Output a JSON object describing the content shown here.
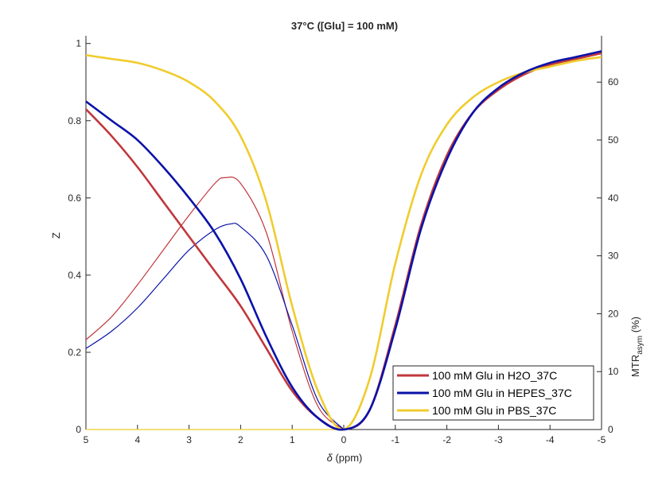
{
  "chart_data": {
    "type": "line",
    "title": "37°C ([Glu] = 100 mM)",
    "xlabel_symbol": "δ",
    "xlabel_unit": " (ppm)",
    "ylabel_left": "Z",
    "ylabel_right_main": "MTR",
    "ylabel_right_sub": "asym",
    "ylabel_right_unit": " (%)",
    "xlim": [
      5,
      -5
    ],
    "ylim_left": [
      0,
      1.02
    ],
    "ylim_right": [
      0,
      68
    ],
    "x_ticks": [
      5,
      4,
      3,
      2,
      1,
      0,
      -1,
      -2,
      -3,
      -4,
      -5
    ],
    "x_tick_labels": [
      "5",
      "4",
      "3",
      "2",
      "1",
      "0",
      "-1",
      "-2",
      "-3",
      "-4",
      "-5"
    ],
    "y_left_ticks": [
      0,
      0.2,
      0.4,
      0.6,
      0.8,
      1
    ],
    "y_left_tick_labels": [
      "0",
      "0.2",
      "0.4",
      "0.6",
      "0.8",
      "1"
    ],
    "y_right_ticks": [
      0,
      10,
      20,
      30,
      40,
      50,
      60
    ],
    "y_right_tick_labels": [
      "0",
      "10",
      "20",
      "30",
      "40",
      "50",
      "60"
    ],
    "grid": false,
    "legend_position": "bottom-right",
    "z_spectra": [
      {
        "name": "100 mM Glu in H2O_37C",
        "color": "#c0373c",
        "x": [
          5,
          4.5,
          4,
          3.5,
          3,
          2.5,
          2,
          1.5,
          1,
          0.5,
          0,
          -0.5,
          -1,
          -1.5,
          -2,
          -2.5,
          -3,
          -3.5,
          -4,
          -4.5,
          -5
        ],
        "y": [
          0.83,
          0.76,
          0.68,
          0.59,
          0.5,
          0.41,
          0.32,
          0.21,
          0.1,
          0.03,
          0.0,
          0.05,
          0.27,
          0.53,
          0.71,
          0.82,
          0.88,
          0.92,
          0.945,
          0.96,
          0.975
        ]
      },
      {
        "name": "100 mM Glu in HEPES_37C",
        "color": "#0a12a8",
        "x": [
          5,
          4.5,
          4,
          3.5,
          3,
          2.5,
          2,
          1.5,
          1,
          0.5,
          0,
          -0.5,
          -1,
          -1.5,
          -2,
          -2.5,
          -3,
          -3.5,
          -4,
          -4.5,
          -5
        ],
        "y": [
          0.85,
          0.8,
          0.75,
          0.68,
          0.6,
          0.51,
          0.39,
          0.24,
          0.11,
          0.03,
          0.0,
          0.05,
          0.26,
          0.52,
          0.7,
          0.82,
          0.885,
          0.925,
          0.95,
          0.965,
          0.98
        ]
      },
      {
        "name": "100 mM Glu in PBS_37C",
        "color": "#f0cc2e",
        "x": [
          5,
          4.5,
          4,
          3.5,
          3,
          2.5,
          2,
          1.5,
          1,
          0.5,
          0,
          -0.5,
          -1,
          -1.5,
          -2,
          -2.5,
          -3,
          -3.5,
          -4,
          -4.5,
          -5
        ],
        "y": [
          0.97,
          0.96,
          0.95,
          0.93,
          0.9,
          0.85,
          0.76,
          0.59,
          0.32,
          0.1,
          0.0,
          0.13,
          0.43,
          0.66,
          0.79,
          0.86,
          0.9,
          0.925,
          0.94,
          0.955,
          0.965
        ]
      }
    ],
    "mtr_asym": [
      {
        "name": "100 mM Glu in H2O_37C",
        "color": "#c0373c",
        "x": [
          5,
          4.5,
          4,
          3.5,
          3,
          2.5,
          2.3,
          2,
          1.5,
          1,
          0.5,
          0
        ],
        "y": [
          15.5,
          19.5,
          25,
          31,
          37,
          42.5,
          43.5,
          42.5,
          34,
          17,
          4,
          0
        ]
      },
      {
        "name": "100 mM Glu in HEPES_37C",
        "color": "#0a12a8",
        "x": [
          5,
          4.5,
          4,
          3.5,
          3,
          2.5,
          2.2,
          2,
          1.5,
          1,
          0.5,
          0
        ],
        "y": [
          14,
          17,
          21,
          26,
          31,
          34.5,
          35.5,
          35,
          30,
          18,
          5,
          0
        ]
      },
      {
        "name": "100 mM Glu in PBS_37C",
        "color": "#f0cc2e",
        "x": [
          5,
          4,
          3,
          2,
          1.5,
          1,
          0.5,
          0
        ],
        "y": [
          0,
          0,
          0,
          0,
          0,
          0,
          0,
          0
        ]
      }
    ],
    "legend": [
      {
        "label": "100 mM Glu in H2O_37C",
        "color": "#c0373c"
      },
      {
        "label": "100 mM Glu in HEPES_37C",
        "color": "#0a12a8"
      },
      {
        "label": "100 mM Glu in PBS_37C",
        "color": "#f0cc2e"
      }
    ]
  }
}
